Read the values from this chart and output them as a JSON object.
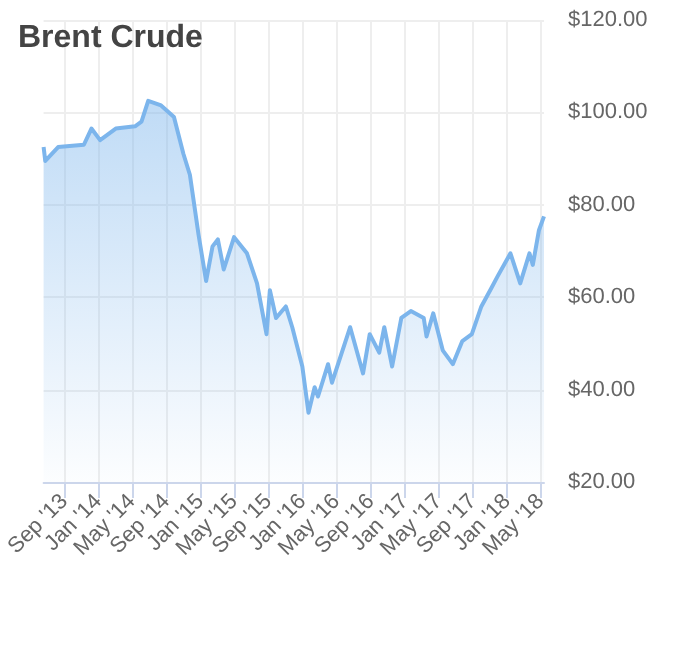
{
  "chart_data": {
    "type": "area",
    "title": "Brent Crude",
    "x": [
      "2013-06-19",
      "2013-06-25",
      "2013-08-10",
      "2013-11-10",
      "2013-12-07",
      "2014-01-07",
      "2014-03-04",
      "2014-05-12",
      "2014-06-04",
      "2014-06-28",
      "2014-08-13",
      "2014-09-28",
      "2014-11-01",
      "2014-11-24",
      "2014-12-25",
      "2015-01-21",
      "2015-02-13",
      "2015-03-04",
      "2015-03-25",
      "2015-05-01",
      "2015-06-16",
      "2015-07-22",
      "2015-08-25",
      "2015-09-06",
      "2015-09-28",
      "2015-11-02",
      "2015-11-25",
      "2015-12-31",
      "2016-01-22",
      "2016-02-13",
      "2016-02-25",
      "2016-04-01",
      "2016-04-15",
      "2016-06-19",
      "2016-08-04",
      "2016-08-28",
      "2016-10-01",
      "2016-10-19",
      "2016-11-16",
      "2016-12-19",
      "2017-01-22",
      "2017-03-09",
      "2017-03-19",
      "2017-04-12",
      "2017-05-16",
      "2017-06-21",
      "2017-07-25",
      "2017-08-28",
      "2017-10-01",
      "2017-11-06",
      "2017-11-28",
      "2018-01-13",
      "2018-02-17",
      "2018-03-22",
      "2018-04-03",
      "2018-04-25",
      "2018-05-13"
    ],
    "series": [
      {
        "color": "#7cb5ec",
        "values": [
          92.5,
          89.5,
          92.5,
          93,
          96.5,
          94,
          96.5,
          97,
          98,
          102.5,
          101.5,
          99,
          91,
          86.5,
          73.5,
          63.5,
          71,
          72.5,
          66,
          73,
          69.5,
          63,
          52,
          61.5,
          55.5,
          58,
          53.5,
          45,
          35,
          40.5,
          38.5,
          45.5,
          41.5,
          53.5,
          43.5,
          52,
          48,
          53.5,
          45,
          55.5,
          57,
          55.5,
          51.5,
          56.5,
          48.5,
          45.5,
          50.5,
          52,
          58,
          62,
          64.5,
          69.5,
          63,
          69.5,
          67,
          74.5,
          77.5
        ]
      }
    ],
    "xlim": [
      "2013-06-19",
      "2018-05-13"
    ],
    "xticks": [
      {
        "value": "2013-09-01",
        "label": "Sep '13"
      },
      {
        "value": "2014-01-01",
        "label": "Jan '14"
      },
      {
        "value": "2014-05-01",
        "label": "May '14"
      },
      {
        "value": "2014-09-01",
        "label": "Sep '14"
      },
      {
        "value": "2015-01-01",
        "label": "Jan '15"
      },
      {
        "value": "2015-05-01",
        "label": "May '15"
      },
      {
        "value": "2015-09-01",
        "label": "Sep '15"
      },
      {
        "value": "2016-01-01",
        "label": "Jan '16"
      },
      {
        "value": "2016-05-01",
        "label": "May '16"
      },
      {
        "value": "2016-09-01",
        "label": "Sep '16"
      },
      {
        "value": "2017-01-01",
        "label": "Jan '17"
      },
      {
        "value": "2017-05-01",
        "label": "May '17"
      },
      {
        "value": "2017-09-01",
        "label": "Sep '17"
      },
      {
        "value": "2018-01-01",
        "label": "Jan '18"
      },
      {
        "value": "2018-05-01",
        "label": "May '18"
      }
    ],
    "ylim": [
      20,
      120
    ],
    "yticks": [
      {
        "value": 20,
        "label": "$20.00"
      },
      {
        "value": 40,
        "label": "$40.00"
      },
      {
        "value": 60,
        "label": "$60.00"
      },
      {
        "value": 80,
        "label": "$80.00"
      },
      {
        "value": 100,
        "label": "$100.00"
      },
      {
        "value": 120,
        "label": "$120.00"
      }
    ],
    "grid": true
  }
}
